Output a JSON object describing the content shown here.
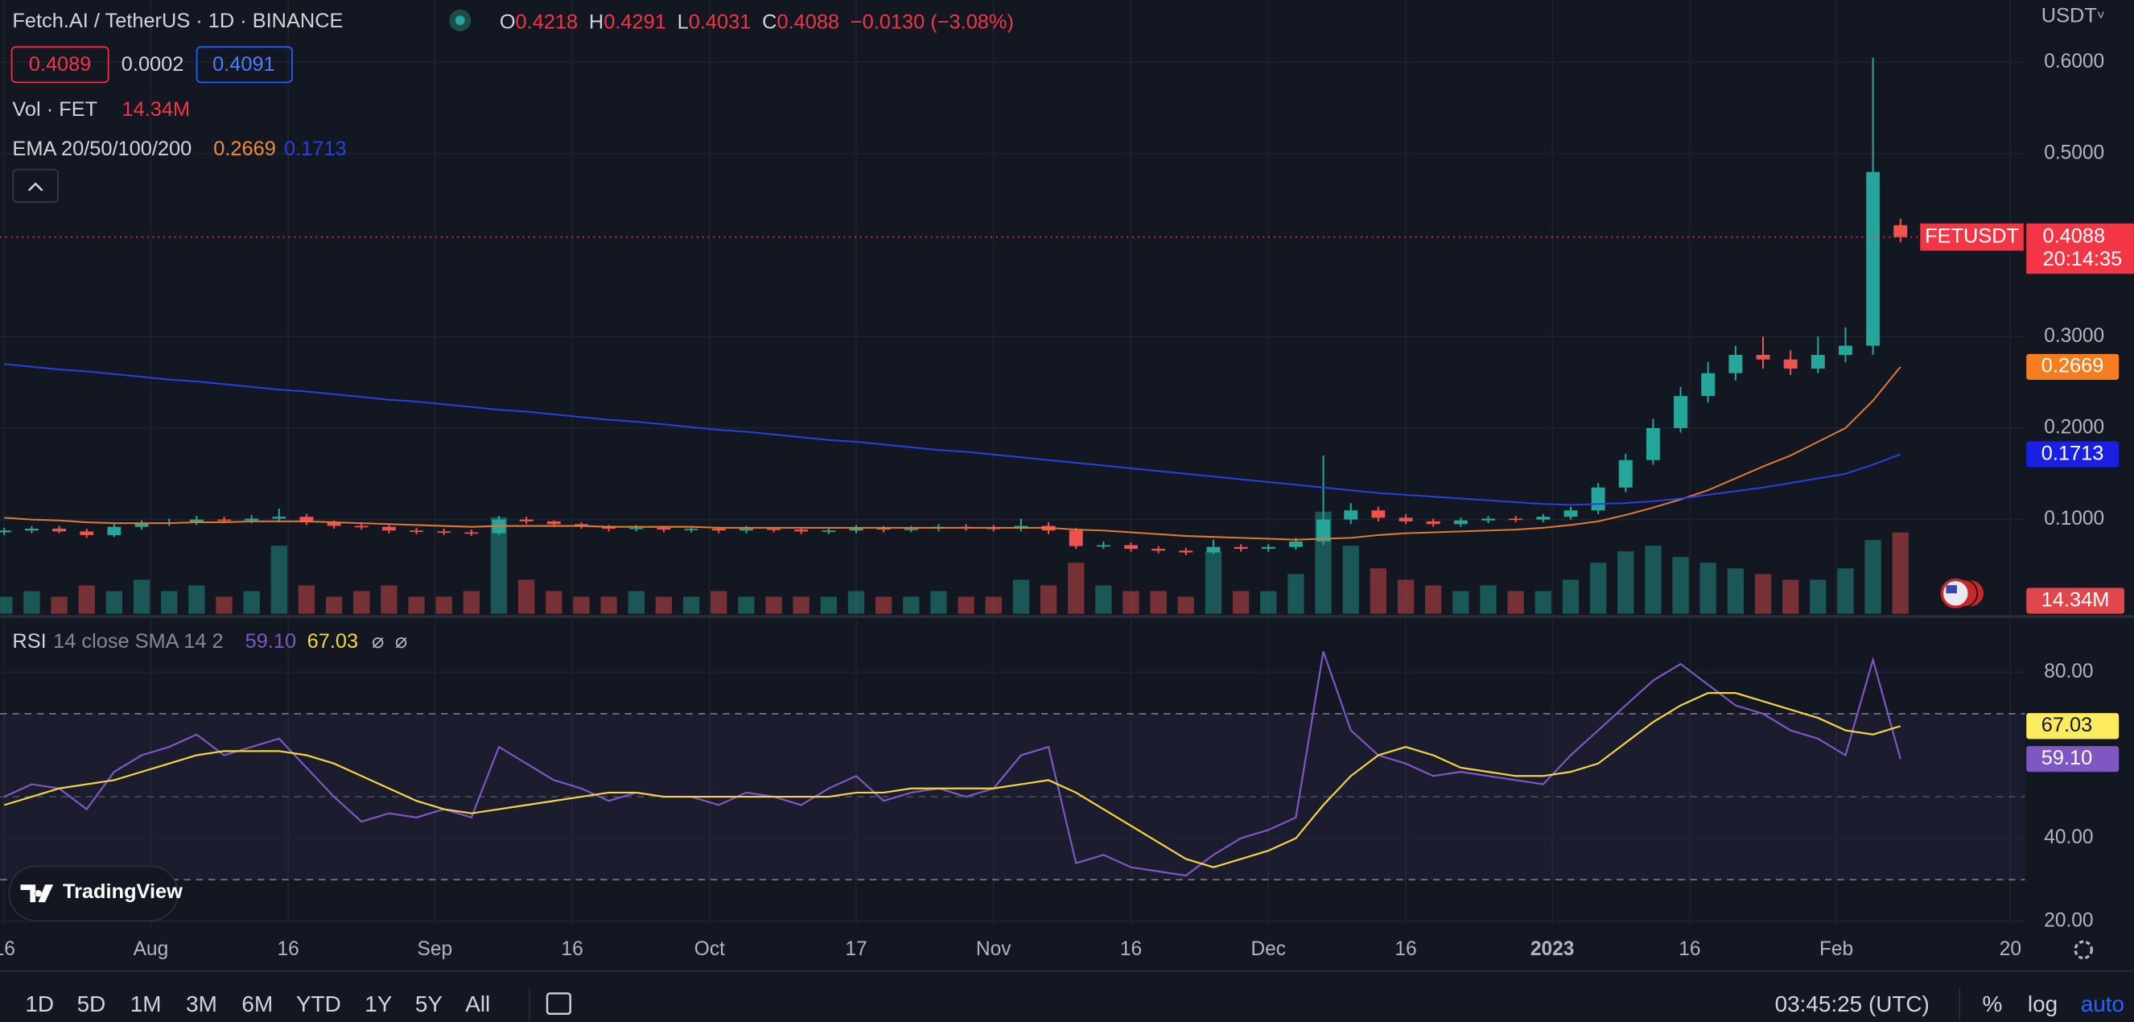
{
  "header": {
    "ohlc_labels": [
      "O",
      "H",
      "L",
      "C"
    ],
    "change": "−0.0130 (−3.08%)",
    "bid": "0.4089",
    "spread": "0.0002",
    "ask": "0.4091",
    "currency": "USDT"
  },
  "chart_data": [
    {
      "type": "candlestick",
      "title": "Fetch.AI / TetherUS · 1D · BINANCE",
      "last_price_label": "FETUSDT",
      "countdown": "20:14:35",
      "up_color": "#26a69a",
      "down_color": "#ef5350",
      "grid": true,
      "x": [
        "2022-07-16",
        "2022-07-19",
        "2022-07-22",
        "2022-07-25",
        "2022-07-28",
        "2022-07-31",
        "2022-08-03",
        "2022-08-06",
        "2022-08-09",
        "2022-08-12",
        "2022-08-15",
        "2022-08-18",
        "2022-08-21",
        "2022-08-24",
        "2022-08-27",
        "2022-08-30",
        "2022-09-02",
        "2022-09-05",
        "2022-09-08",
        "2022-09-11",
        "2022-09-14",
        "2022-09-17",
        "2022-09-20",
        "2022-09-23",
        "2022-09-26",
        "2022-09-29",
        "2022-10-02",
        "2022-10-05",
        "2022-10-08",
        "2022-10-11",
        "2022-10-14",
        "2022-10-17",
        "2022-10-20",
        "2022-10-23",
        "2022-10-26",
        "2022-10-29",
        "2022-11-01",
        "2022-11-04",
        "2022-11-07",
        "2022-11-10",
        "2022-11-13",
        "2022-11-16",
        "2022-11-19",
        "2022-11-22",
        "2022-11-25",
        "2022-11-28",
        "2022-12-01",
        "2022-12-04",
        "2022-12-07",
        "2022-12-10",
        "2022-12-13",
        "2022-12-16",
        "2022-12-19",
        "2022-12-22",
        "2022-12-25",
        "2022-12-28",
        "2022-12-31",
        "2023-01-03",
        "2023-01-06",
        "2023-01-09",
        "2023-01-12",
        "2023-01-15",
        "2023-01-18",
        "2023-01-21",
        "2023-01-24",
        "2023-01-27",
        "2023-01-30",
        "2023-02-02",
        "2023-02-05",
        "2023-02-08"
      ],
      "open": [
        0.086,
        0.088,
        0.09,
        0.087,
        0.083,
        0.092,
        0.096,
        0.097,
        0.1,
        0.099,
        0.101,
        0.103,
        0.097,
        0.093,
        0.092,
        0.088,
        0.087,
        0.086,
        0.085,
        0.1,
        0.098,
        0.095,
        0.093,
        0.09,
        0.091,
        0.089,
        0.09,
        0.088,
        0.09,
        0.089,
        0.087,
        0.088,
        0.091,
        0.089,
        0.09,
        0.092,
        0.091,
        0.09,
        0.093,
        0.088,
        0.071,
        0.072,
        0.068,
        0.066,
        0.064,
        0.07,
        0.068,
        0.07,
        0.076,
        0.1,
        0.11,
        0.102,
        0.098,
        0.095,
        0.099,
        0.101,
        0.1,
        0.103,
        0.11,
        0.135,
        0.165,
        0.2,
        0.235,
        0.26,
        0.28,
        0.275,
        0.265,
        0.28,
        0.29,
        0.4218
      ],
      "high": [
        0.091,
        0.093,
        0.093,
        0.09,
        0.095,
        0.099,
        0.101,
        0.104,
        0.103,
        0.105,
        0.112,
        0.106,
        0.099,
        0.096,
        0.094,
        0.091,
        0.09,
        0.089,
        0.104,
        0.103,
        0.099,
        0.097,
        0.094,
        0.094,
        0.093,
        0.093,
        0.092,
        0.093,
        0.092,
        0.091,
        0.091,
        0.094,
        0.093,
        0.093,
        0.095,
        0.095,
        0.094,
        0.101,
        0.097,
        0.091,
        0.076,
        0.075,
        0.071,
        0.069,
        0.078,
        0.073,
        0.073,
        0.08,
        0.17,
        0.118,
        0.114,
        0.106,
        0.101,
        0.102,
        0.104,
        0.104,
        0.106,
        0.114,
        0.14,
        0.172,
        0.21,
        0.245,
        0.272,
        0.29,
        0.3,
        0.285,
        0.3,
        0.31,
        0.605,
        0.4291
      ],
      "low": [
        0.083,
        0.085,
        0.085,
        0.08,
        0.081,
        0.089,
        0.093,
        0.094,
        0.096,
        0.096,
        0.097,
        0.094,
        0.09,
        0.089,
        0.085,
        0.084,
        0.083,
        0.082,
        0.083,
        0.095,
        0.092,
        0.09,
        0.087,
        0.087,
        0.086,
        0.086,
        0.085,
        0.085,
        0.086,
        0.084,
        0.084,
        0.085,
        0.086,
        0.086,
        0.087,
        0.088,
        0.087,
        0.087,
        0.084,
        0.068,
        0.068,
        0.065,
        0.063,
        0.061,
        0.062,
        0.065,
        0.065,
        0.067,
        0.072,
        0.095,
        0.098,
        0.095,
        0.092,
        0.092,
        0.096,
        0.097,
        0.097,
        0.1,
        0.106,
        0.13,
        0.16,
        0.195,
        0.228,
        0.252,
        0.265,
        0.258,
        0.26,
        0.272,
        0.28,
        0.4031
      ],
      "close": [
        0.088,
        0.09,
        0.087,
        0.083,
        0.092,
        0.096,
        0.097,
        0.1,
        0.099,
        0.101,
        0.103,
        0.097,
        0.093,
        0.092,
        0.088,
        0.087,
        0.086,
        0.085,
        0.1,
        0.098,
        0.095,
        0.093,
        0.09,
        0.091,
        0.089,
        0.09,
        0.088,
        0.09,
        0.089,
        0.087,
        0.088,
        0.091,
        0.089,
        0.09,
        0.092,
        0.091,
        0.09,
        0.093,
        0.088,
        0.071,
        0.072,
        0.068,
        0.066,
        0.064,
        0.07,
        0.068,
        0.07,
        0.076,
        0.1,
        0.11,
        0.102,
        0.098,
        0.095,
        0.099,
        0.101,
        0.1,
        0.103,
        0.11,
        0.135,
        0.165,
        0.2,
        0.235,
        0.26,
        0.28,
        0.275,
        0.265,
        0.28,
        0.29,
        0.48,
        0.4088
      ],
      "volume": {
        "name": "Vol · FET",
        "last_label": "14.34M",
        "values": [
          3,
          4,
          3,
          5,
          4,
          6,
          4,
          5,
          3,
          4,
          12,
          5,
          3,
          4,
          5,
          3,
          3,
          4,
          17,
          6,
          4,
          3,
          3,
          4,
          3,
          3,
          4,
          3,
          3,
          3,
          3,
          4,
          3,
          3,
          4,
          3,
          3,
          6,
          5,
          9,
          5,
          4,
          4,
          3,
          11,
          4,
          4,
          7,
          18,
          12,
          8,
          6,
          5,
          4,
          5,
          4,
          4,
          6,
          9,
          11,
          12,
          10,
          9,
          8,
          7,
          6,
          6,
          8,
          13,
          14.34
        ]
      },
      "ema_name": "EMA 20/50/100/200",
      "ema": [
        {
          "color": "#e07a2e",
          "values": [
            0.102,
            0.1,
            0.099,
            0.097,
            0.096,
            0.096,
            0.096,
            0.097,
            0.097,
            0.098,
            0.098,
            0.098,
            0.097,
            0.096,
            0.095,
            0.094,
            0.093,
            0.092,
            0.093,
            0.093,
            0.093,
            0.093,
            0.092,
            0.092,
            0.092,
            0.092,
            0.091,
            0.091,
            0.091,
            0.091,
            0.091,
            0.091,
            0.091,
            0.091,
            0.091,
            0.091,
            0.091,
            0.091,
            0.091,
            0.089,
            0.088,
            0.086,
            0.084,
            0.082,
            0.081,
            0.08,
            0.079,
            0.078,
            0.079,
            0.08,
            0.083,
            0.085,
            0.086,
            0.087,
            0.088,
            0.089,
            0.091,
            0.094,
            0.098,
            0.105,
            0.113,
            0.122,
            0.132,
            0.145,
            0.158,
            0.17,
            0.185,
            0.2,
            0.23,
            0.2669
          ]
        },
        {
          "color": "#2a3fe0",
          "values": [
            0.27,
            0.267,
            0.264,
            0.262,
            0.259,
            0.256,
            0.253,
            0.251,
            0.248,
            0.245,
            0.242,
            0.24,
            0.237,
            0.234,
            0.231,
            0.229,
            0.226,
            0.223,
            0.22,
            0.218,
            0.215,
            0.212,
            0.209,
            0.207,
            0.204,
            0.201,
            0.198,
            0.196,
            0.193,
            0.19,
            0.187,
            0.185,
            0.182,
            0.179,
            0.176,
            0.174,
            0.171,
            0.168,
            0.165,
            0.162,
            0.159,
            0.156,
            0.153,
            0.15,
            0.147,
            0.144,
            0.141,
            0.138,
            0.135,
            0.132,
            0.129,
            0.127,
            0.125,
            0.123,
            0.121,
            0.119,
            0.117,
            0.116,
            0.117,
            0.118,
            0.12,
            0.123,
            0.127,
            0.131,
            0.135,
            0.14,
            0.145,
            0.15,
            0.16,
            0.1713
          ]
        }
      ],
      "xlim": [
        "2022-07-16",
        "2023-02-21"
      ],
      "xticks": [
        {
          "value": "2022-07-16",
          "label": "16"
        },
        {
          "value": "2022-08-01",
          "label": "Aug"
        },
        {
          "value": "2022-08-16",
          "label": "16"
        },
        {
          "value": "2022-09-01",
          "label": "Sep"
        },
        {
          "value": "2022-09-16",
          "label": "16"
        },
        {
          "value": "2022-10-01",
          "label": "Oct"
        },
        {
          "value": "2022-10-17",
          "label": "17"
        },
        {
          "value": "2022-11-01",
          "label": "Nov"
        },
        {
          "value": "2022-11-16",
          "label": "16"
        },
        {
          "value": "2022-12-01",
          "label": "Dec"
        },
        {
          "value": "2022-12-16",
          "label": "16"
        },
        {
          "value": "2023-01-01",
          "label": "2023"
        },
        {
          "value": "2023-01-16",
          "label": "16"
        },
        {
          "value": "2023-02-01",
          "label": "Feb"
        },
        {
          "value": "2023-02-20",
          "label": "20"
        }
      ],
      "ylim": [
        -0.003,
        0.668
      ],
      "yticks": [
        {
          "value": 0.1,
          "label": "0.1000"
        },
        {
          "value": 0.2,
          "label": "0.2000"
        },
        {
          "value": 0.3,
          "label": "0.3000"
        },
        {
          "value": 0.5,
          "label": "0.5000"
        },
        {
          "value": 0.6,
          "label": "0.6000"
        }
      ]
    },
    {
      "type": "line",
      "title": "RSI",
      "subtitle": "14 close SMA 14 2",
      "extras": [
        "⌀",
        "⌀"
      ],
      "series": [
        {
          "color": "#7e57c2",
          "last_label": "59.10",
          "values": [
            50,
            53,
            52,
            47,
            56,
            60,
            62,
            65,
            60,
            62,
            64,
            57,
            50,
            44,
            46,
            45,
            47,
            45,
            62,
            58,
            54,
            52,
            49,
            51,
            50,
            50,
            48,
            51,
            50,
            48,
            52,
            55,
            49,
            51,
            52,
            50,
            52,
            60,
            62,
            34,
            36,
            33,
            32,
            31,
            36,
            40,
            42,
            45,
            85,
            66,
            60,
            58,
            55,
            56,
            55,
            54,
            53,
            60,
            66,
            72,
            78,
            82,
            77,
            72,
            70,
            66,
            64,
            60,
            83,
            59.1
          ]
        },
        {
          "color": "#f5d63d",
          "values": [
            48,
            50,
            52,
            53,
            54,
            56,
            58,
            60,
            61,
            61,
            61,
            60,
            58,
            55,
            52,
            49,
            47,
            46,
            47,
            48,
            49,
            50,
            51,
            51,
            50,
            50,
            50,
            50,
            50,
            50,
            50,
            51,
            51,
            52,
            52,
            52,
            52,
            53,
            54,
            51,
            47,
            43,
            39,
            35,
            33,
            35,
            37,
            40,
            48,
            55,
            60,
            62,
            60,
            57,
            56,
            55,
            55,
            56,
            58,
            63,
            68,
            72,
            75,
            75,
            73,
            71,
            69,
            66,
            65,
            67.03
          ]
        }
      ],
      "bands": [
        70,
        50,
        30
      ],
      "ylim": [
        19,
        91.8
      ],
      "yticks": [
        {
          "value": 20,
          "label": "20.00"
        },
        {
          "value": 40,
          "label": "40.00"
        },
        {
          "value": 80,
          "label": "80.00"
        }
      ]
    }
  ],
  "toolbar": {
    "ranges": [
      "1D",
      "5D",
      "1M",
      "3M",
      "6M",
      "YTD",
      "1Y",
      "5Y",
      "All"
    ],
    "clock": "03:45:25 (UTC)",
    "options": [
      "%",
      "log",
      "auto"
    ]
  },
  "branding": "TradingView"
}
